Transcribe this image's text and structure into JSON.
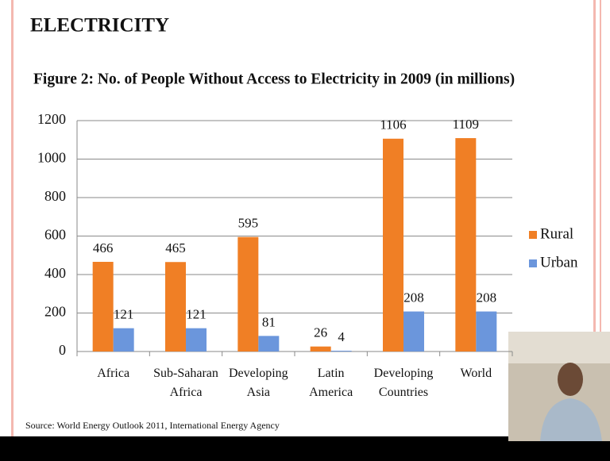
{
  "header": {
    "title": "ELECTRICITY"
  },
  "chart_data": {
    "type": "bar",
    "title": "Figure 2: No. of People Without Access to Electricity in 2009 (in millions)",
    "categories": [
      "Africa",
      "Sub-Saharan Africa",
      "Developing Asia",
      "Latin America",
      "Developing Countries",
      "World"
    ],
    "series": [
      {
        "name": "Rural",
        "color": "#f07f25",
        "values": [
          466,
          465,
          595,
          26,
          1106,
          1109
        ]
      },
      {
        "name": "Urban",
        "color": "#6b96dc",
        "values": [
          121,
          121,
          81,
          4,
          208,
          208
        ]
      }
    ],
    "ylim": [
      0,
      1200
    ],
    "yticks": [
      0,
      200,
      400,
      600,
      800,
      1000,
      1200
    ],
    "grid": true,
    "legend": "right",
    "source": "Source: World Energy Outlook 2011, International Energy Agency"
  }
}
